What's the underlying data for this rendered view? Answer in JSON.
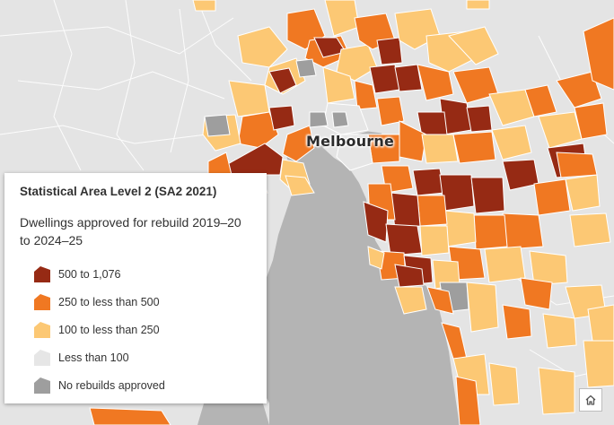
{
  "map": {
    "city_label": "Melbourne",
    "colors": {
      "water": "#b4b4b4",
      "land_base": "#e4e4e4",
      "boundary": "#ffffff",
      "class_500_1076": "#962a14",
      "class_250_500": "#f07822",
      "class_100_250": "#fcc874",
      "class_lt_100": "#e6e6e6",
      "class_none": "#9e9e9e"
    }
  },
  "legend": {
    "title": "Statistical Area Level 2 (SA2 2021)",
    "subtitle": "Dwellings approved for rebuild 2019–20 to 2024–25",
    "items": [
      {
        "label": "500 to 1,076",
        "color": "#962a14",
        "shape": "wedge"
      },
      {
        "label": "250 to less than 500",
        "color": "#f07822",
        "shape": "wedge"
      },
      {
        "label": "100 to less than 250",
        "color": "#fcc874",
        "shape": "wedge"
      },
      {
        "label": "Less than 100",
        "color": "#e6e6e6",
        "shape": "wedge"
      },
      {
        "label": "No rebuilds approved",
        "color": "#9e9e9e",
        "shape": "wedge"
      }
    ]
  },
  "controls": {
    "home_icon": "home-icon"
  }
}
